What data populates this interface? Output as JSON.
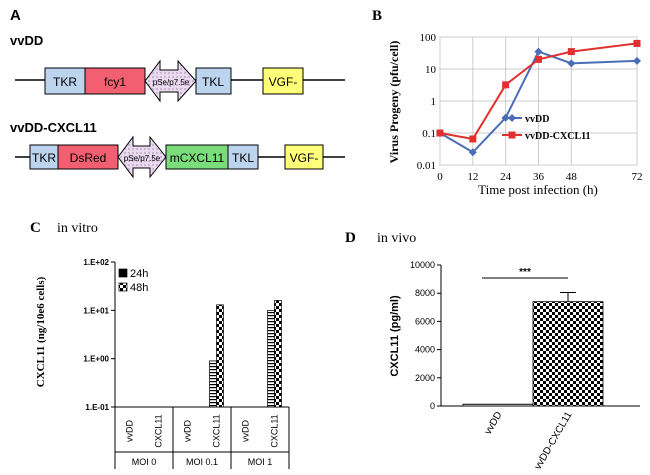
{
  "panels": {
    "A": "A",
    "B": "B",
    "C": "C",
    "D": "D",
    "C_subtitle": "in vitro",
    "D_subtitle": "in vivo"
  },
  "constructs": {
    "vvdd": {
      "name": "vvDD",
      "tkr": "TKR",
      "gene": "fcy1",
      "promoter": "pSe/p7.5e",
      "tkl": "TKL",
      "vgf": "VGF-",
      "colors": {
        "tk": "#bcd4ee",
        "gene": "#f15f70",
        "promoter": "#e6d0ea",
        "vgf": "#ffff7a"
      }
    },
    "vvdd_cxcl11": {
      "name": "vvDD-CXCL11",
      "tkr": "TKR",
      "gene1": "DsRed",
      "promoter": "pSe/p7.5e",
      "gene2": "mCXCL11",
      "tkl": "TKL",
      "vgf": "VGF-",
      "colors": {
        "tk": "#bcd4ee",
        "gene1": "#f15f70",
        "promoter": "#e6d0ea",
        "gene2": "#7bdc7b",
        "vgf": "#ffff7a"
      }
    }
  },
  "chart_data": [
    {
      "panel": "B",
      "type": "line",
      "ylabel": "Virus Progeny (pfu/cell)",
      "xlabel": "Time post infection (h)",
      "yscale": "log",
      "ylim": [
        0.01,
        100
      ],
      "yticks": [
        "0.01",
        "0.1",
        "1",
        "10",
        "100"
      ],
      "xticks": [
        "0",
        "12",
        "24",
        "36",
        "48",
        "72"
      ],
      "x": [
        0,
        12,
        24,
        36,
        48,
        72
      ],
      "grid": true,
      "legend": "right",
      "series": [
        {
          "name": "vvDD",
          "color": "#4a6eb5",
          "marker": "diamond",
          "values": [
            0.1,
            0.025,
            0.3,
            35,
            15,
            18
          ]
        },
        {
          "name": "vvDD-CXCL11",
          "color": "#e0312e",
          "marker": "square",
          "values": [
            0.1,
            0.065,
            3.2,
            20,
            35,
            63
          ]
        }
      ]
    },
    {
      "panel": "C",
      "type": "bar",
      "ylabel": "CXCL11 (ng/10e6 cells)",
      "yscale": "log",
      "ylim": [
        0.1,
        100
      ],
      "yticks": [
        "1.E-01",
        "1.E+00",
        "1.E+01",
        "1.E+02"
      ],
      "categories": [
        "vvDD",
        "CXCL11",
        "vvDD",
        "CXCL11",
        "vvDD",
        "CXCL11"
      ],
      "groups": [
        "MOI 0",
        "MOI 0.1",
        "MOI 1"
      ],
      "legend": "top-left",
      "series": [
        {
          "name": "24h",
          "values": [
            null,
            null,
            null,
            0.9,
            null,
            10
          ]
        },
        {
          "name": "48h",
          "values": [
            null,
            null,
            null,
            13,
            null,
            16
          ]
        }
      ]
    },
    {
      "panel": "D",
      "type": "bar",
      "ylabel": "CXCL11 (pg/ml)",
      "ylim": [
        0,
        10000
      ],
      "yticks": [
        "0",
        "2000",
        "4000",
        "6000",
        "8000",
        "10000"
      ],
      "categories": [
        "vvDD",
        "vvDD-CXCL11"
      ],
      "values": [
        130,
        7400
      ],
      "errors": [
        30,
        650
      ],
      "significance": "***"
    }
  ]
}
